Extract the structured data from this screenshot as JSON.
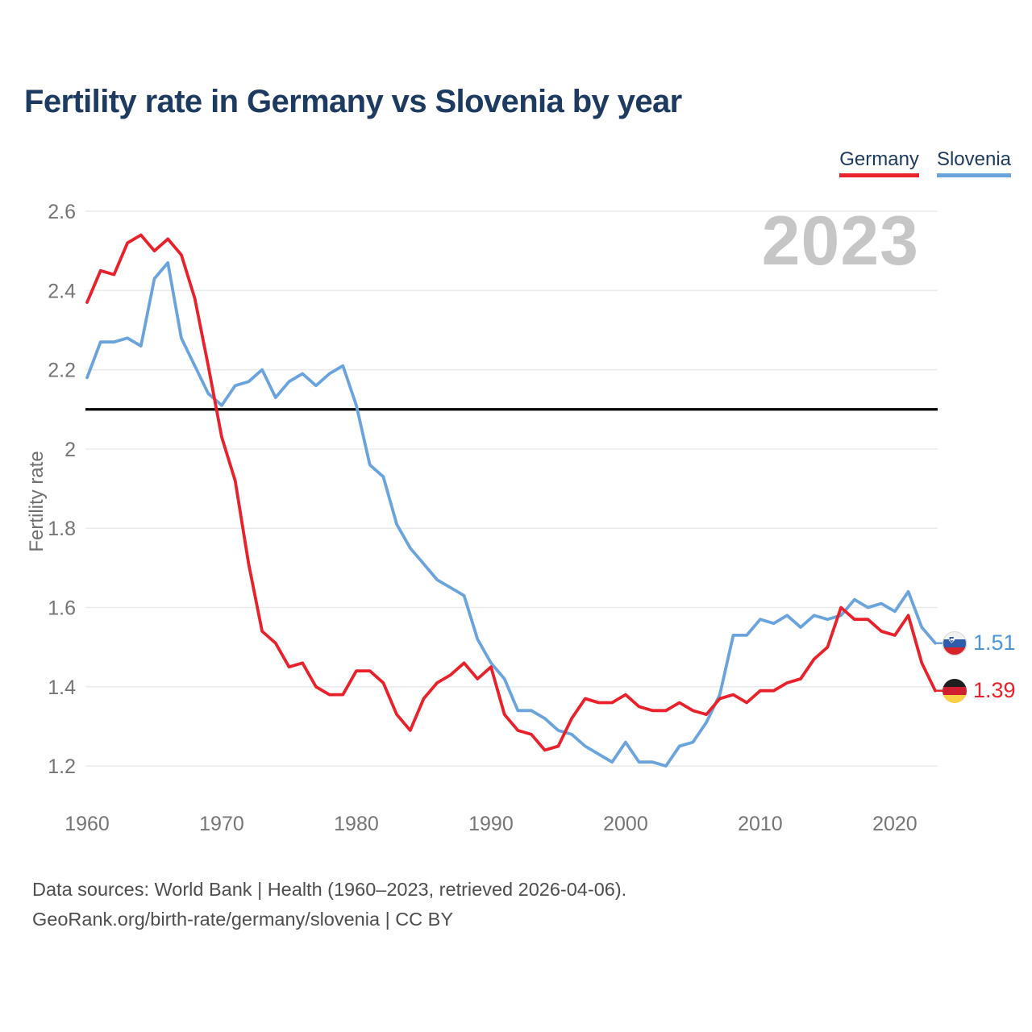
{
  "page": {
    "title": "Fertility rate in Germany vs Slovenia by year"
  },
  "legend": {
    "items": [
      {
        "label": "Germany",
        "color": "#e8212b"
      },
      {
        "label": "Slovenia",
        "color": "#6ba4dc"
      }
    ]
  },
  "watermark": "2023",
  "chart_data": {
    "type": "line",
    "title": "Fertility rate in Germany vs Slovenia by year",
    "xlabel": "",
    "ylabel": "Fertility rate",
    "grid": "horizontal",
    "legend_position": "top-right",
    "ylim": [
      1.13,
      2.65
    ],
    "xlim": [
      1960,
      2023
    ],
    "yticks": [
      1.2,
      1.4,
      1.6,
      1.8,
      2,
      2.2,
      2.4,
      2.6
    ],
    "ytick_labels": [
      "1.2",
      "1.4",
      "1.6",
      "1.8",
      "2",
      "2.2",
      "2.4",
      "2.6"
    ],
    "xticks": [
      1960,
      1970,
      1980,
      1990,
      2000,
      2010,
      2020
    ],
    "reference_line": {
      "value": 2.1,
      "color": "#000000"
    },
    "years": [
      1960,
      1961,
      1962,
      1963,
      1964,
      1965,
      1966,
      1967,
      1968,
      1969,
      1970,
      1971,
      1972,
      1973,
      1974,
      1975,
      1976,
      1977,
      1978,
      1979,
      1980,
      1981,
      1982,
      1983,
      1984,
      1985,
      1986,
      1987,
      1988,
      1989,
      1990,
      1991,
      1992,
      1993,
      1994,
      1995,
      1996,
      1997,
      1998,
      1999,
      2000,
      2001,
      2002,
      2003,
      2004,
      2005,
      2006,
      2007,
      2008,
      2009,
      2010,
      2011,
      2012,
      2013,
      2014,
      2015,
      2016,
      2017,
      2018,
      2019,
      2020,
      2021,
      2022,
      2023
    ],
    "series": [
      {
        "name": "Germany",
        "color": "#e8212b",
        "values": [
          2.37,
          2.45,
          2.44,
          2.52,
          2.54,
          2.5,
          2.53,
          2.49,
          2.38,
          2.21,
          2.03,
          1.92,
          1.71,
          1.54,
          1.51,
          1.45,
          1.46,
          1.4,
          1.38,
          1.38,
          1.44,
          1.44,
          1.41,
          1.33,
          1.29,
          1.37,
          1.41,
          1.43,
          1.46,
          1.42,
          1.45,
          1.33,
          1.29,
          1.28,
          1.24,
          1.25,
          1.32,
          1.37,
          1.36,
          1.36,
          1.38,
          1.35,
          1.34,
          1.34,
          1.36,
          1.34,
          1.33,
          1.37,
          1.38,
          1.36,
          1.39,
          1.39,
          1.41,
          1.42,
          1.47,
          1.5,
          1.6,
          1.57,
          1.57,
          1.54,
          1.53,
          1.58,
          1.46,
          1.39
        ]
      },
      {
        "name": "Slovenia",
        "color": "#6ba4dc",
        "values": [
          2.18,
          2.27,
          2.27,
          2.28,
          2.26,
          2.43,
          2.47,
          2.28,
          2.21,
          2.14,
          2.11,
          2.16,
          2.17,
          2.2,
          2.13,
          2.17,
          2.19,
          2.16,
          2.19,
          2.21,
          2.11,
          1.96,
          1.93,
          1.81,
          1.75,
          1.71,
          1.67,
          1.65,
          1.63,
          1.52,
          1.46,
          1.42,
          1.34,
          1.34,
          1.32,
          1.29,
          1.28,
          1.25,
          1.23,
          1.21,
          1.26,
          1.21,
          1.21,
          1.2,
          1.25,
          1.26,
          1.31,
          1.38,
          1.53,
          1.53,
          1.57,
          1.56,
          1.58,
          1.55,
          1.58,
          1.57,
          1.58,
          1.62,
          1.6,
          1.61,
          1.59,
          1.64,
          1.55,
          1.51
        ]
      }
    ]
  },
  "end_labels": [
    {
      "series": "Slovenia",
      "value": "1.51",
      "flag": "slovenia-flag",
      "color": "#4d95d5"
    },
    {
      "series": "Germany",
      "value": "1.39",
      "flag": "germany-flag",
      "color": "#e8212b"
    }
  ],
  "footer": {
    "line1": "Data sources: World Bank | Health (1960–2023, retrieved 2026-04-06).",
    "line2": "GeoRank.org/birth-rate/germany/slovenia | CC BY"
  }
}
